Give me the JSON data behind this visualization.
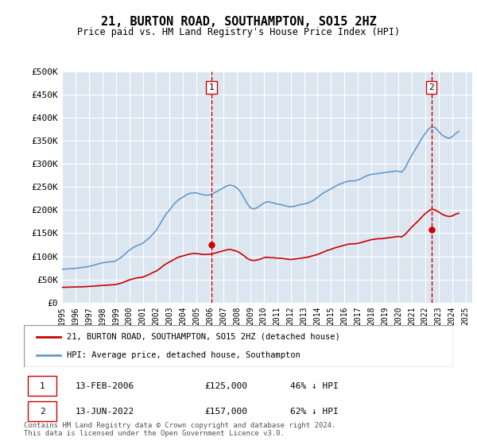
{
  "title": "21, BURTON ROAD, SOUTHAMPTON, SO15 2HZ",
  "subtitle": "Price paid vs. HM Land Registry's House Price Index (HPI)",
  "ylabel_ticks": [
    "£0",
    "£50K",
    "£100K",
    "£150K",
    "£200K",
    "£250K",
    "£300K",
    "£350K",
    "£400K",
    "£450K",
    "£500K"
  ],
  "ytick_values": [
    0,
    50000,
    100000,
    150000,
    200000,
    250000,
    300000,
    350000,
    400000,
    450000,
    500000
  ],
  "ylim": [
    0,
    500000
  ],
  "xlim_start": 1995.0,
  "xlim_end": 2025.5,
  "background_color": "#dce6f1",
  "plot_bg_color": "#dce6f1",
  "red_line_color": "#cc0000",
  "blue_line_color": "#6699cc",
  "vline_color": "#cc0000",
  "transaction1": {
    "date_label": "13-FEB-2006",
    "price": 125000,
    "pct": "46% ↓ HPI",
    "x": 2006.12,
    "marker_num": 1
  },
  "transaction2": {
    "date_label": "13-JUN-2022",
    "price": 157000,
    "pct": "62% ↓ HPI",
    "x": 2022.46,
    "marker_num": 2
  },
  "legend_label_red": "21, BURTON ROAD, SOUTHAMPTON, SO15 2HZ (detached house)",
  "legend_label_blue": "HPI: Average price, detached house, Southampton",
  "footnote": "Contains HM Land Registry data © Crown copyright and database right 2024.\nThis data is licensed under the Open Government Licence v3.0.",
  "hpi_data": {
    "years": [
      1995.0,
      1995.25,
      1995.5,
      1995.75,
      1996.0,
      1996.25,
      1996.5,
      1996.75,
      1997.0,
      1997.25,
      1997.5,
      1997.75,
      1998.0,
      1998.25,
      1998.5,
      1998.75,
      1999.0,
      1999.25,
      1999.5,
      1999.75,
      2000.0,
      2000.25,
      2000.5,
      2000.75,
      2001.0,
      2001.25,
      2001.5,
      2001.75,
      2002.0,
      2002.25,
      2002.5,
      2002.75,
      2003.0,
      2003.25,
      2003.5,
      2003.75,
      2004.0,
      2004.25,
      2004.5,
      2004.75,
      2005.0,
      2005.25,
      2005.5,
      2005.75,
      2006.0,
      2006.25,
      2006.5,
      2006.75,
      2007.0,
      2007.25,
      2007.5,
      2007.75,
      2008.0,
      2008.25,
      2008.5,
      2008.75,
      2009.0,
      2009.25,
      2009.5,
      2009.75,
      2010.0,
      2010.25,
      2010.5,
      2010.75,
      2011.0,
      2011.25,
      2011.5,
      2011.75,
      2012.0,
      2012.25,
      2012.5,
      2012.75,
      2013.0,
      2013.25,
      2013.5,
      2013.75,
      2014.0,
      2014.25,
      2014.5,
      2014.75,
      2015.0,
      2015.25,
      2015.5,
      2015.75,
      2016.0,
      2016.25,
      2016.5,
      2016.75,
      2017.0,
      2017.25,
      2017.5,
      2017.75,
      2018.0,
      2018.25,
      2018.5,
      2018.75,
      2019.0,
      2019.25,
      2019.5,
      2019.75,
      2020.0,
      2020.25,
      2020.5,
      2020.75,
      2021.0,
      2021.25,
      2021.5,
      2021.75,
      2022.0,
      2022.25,
      2022.5,
      2022.75,
      2023.0,
      2023.25,
      2023.5,
      2023.75,
      2024.0,
      2024.25,
      2024.5
    ],
    "values": [
      72000,
      72500,
      73000,
      73500,
      74000,
      75000,
      76000,
      77000,
      78000,
      80000,
      82000,
      84000,
      86000,
      87000,
      88000,
      88500,
      90000,
      95000,
      100000,
      107000,
      113000,
      118000,
      122000,
      125000,
      128000,
      134000,
      140000,
      148000,
      156000,
      168000,
      180000,
      192000,
      200000,
      210000,
      218000,
      224000,
      228000,
      233000,
      236000,
      237000,
      237000,
      235000,
      233000,
      232000,
      233000,
      236000,
      240000,
      244000,
      248000,
      252000,
      254000,
      252000,
      248000,
      240000,
      228000,
      215000,
      205000,
      202000,
      205000,
      210000,
      215000,
      218000,
      217000,
      215000,
      213000,
      212000,
      210000,
      208000,
      207000,
      208000,
      210000,
      212000,
      213000,
      215000,
      218000,
      222000,
      227000,
      233000,
      238000,
      242000,
      246000,
      250000,
      254000,
      257000,
      260000,
      262000,
      263000,
      263000,
      265000,
      268000,
      272000,
      275000,
      277000,
      278000,
      279000,
      280000,
      281000,
      282000,
      283000,
      284000,
      284000,
      282000,
      290000,
      305000,
      318000,
      330000,
      342000,
      355000,
      365000,
      375000,
      380000,
      378000,
      370000,
      362000,
      358000,
      355000,
      358000,
      365000,
      370000
    ]
  },
  "property_data": {
    "years": [
      1995.0,
      1995.25,
      1995.5,
      1995.75,
      1996.0,
      1996.25,
      1996.5,
      1996.75,
      1997.0,
      1997.25,
      1997.5,
      1997.75,
      1998.0,
      1998.25,
      1998.5,
      1998.75,
      1999.0,
      1999.25,
      1999.5,
      1999.75,
      2000.0,
      2000.25,
      2000.5,
      2000.75,
      2001.0,
      2001.25,
      2001.5,
      2001.75,
      2002.0,
      2002.25,
      2002.5,
      2002.75,
      2003.0,
      2003.25,
      2003.5,
      2003.75,
      2004.0,
      2004.25,
      2004.5,
      2004.75,
      2005.0,
      2005.25,
      2005.5,
      2005.75,
      2006.0,
      2006.25,
      2006.5,
      2006.75,
      2007.0,
      2007.25,
      2007.5,
      2007.75,
      2008.0,
      2008.25,
      2008.5,
      2008.75,
      2009.0,
      2009.25,
      2009.5,
      2009.75,
      2010.0,
      2010.25,
      2010.5,
      2010.75,
      2011.0,
      2011.25,
      2011.5,
      2011.75,
      2012.0,
      2012.25,
      2012.5,
      2012.75,
      2013.0,
      2013.25,
      2013.5,
      2013.75,
      2014.0,
      2014.25,
      2014.5,
      2014.75,
      2015.0,
      2015.25,
      2015.5,
      2015.75,
      2016.0,
      2016.25,
      2016.5,
      2016.75,
      2017.0,
      2017.25,
      2017.5,
      2017.75,
      2018.0,
      2018.25,
      2018.5,
      2018.75,
      2019.0,
      2019.25,
      2019.5,
      2019.75,
      2020.0,
      2020.25,
      2020.5,
      2020.75,
      2021.0,
      2021.25,
      2021.5,
      2021.75,
      2022.0,
      2022.25,
      2022.5,
      2022.75,
      2023.0,
      2023.25,
      2023.5,
      2023.75,
      2024.0,
      2024.25,
      2024.5
    ],
    "values": [
      33000,
      33200,
      33400,
      33600,
      33800,
      34000,
      34200,
      34500,
      35000,
      35500,
      36000,
      36500,
      37000,
      37500,
      38000,
      38500,
      39000,
      41000,
      43000,
      46000,
      49000,
      51000,
      53000,
      54000,
      55000,
      58000,
      61000,
      65000,
      68000,
      73000,
      79000,
      84000,
      88000,
      92000,
      96000,
      99000,
      101000,
      103000,
      105000,
      106000,
      106000,
      105000,
      104000,
      104000,
      104500,
      106000,
      108000,
      110000,
      112000,
      114000,
      115000,
      113000,
      111000,
      107000,
      102000,
      96000,
      92000,
      91000,
      92000,
      94000,
      97000,
      98000,
      97000,
      97000,
      96000,
      96000,
      95000,
      94000,
      93000,
      94000,
      95000,
      96000,
      97000,
      98000,
      100000,
      102000,
      104000,
      107000,
      110000,
      113000,
      115000,
      118000,
      120000,
      122000,
      124000,
      126000,
      127000,
      127000,
      128000,
      130000,
      132000,
      134000,
      136000,
      137000,
      138000,
      138000,
      139000,
      140000,
      141000,
      142000,
      143000,
      142000,
      147000,
      155000,
      163000,
      170000,
      177000,
      185000,
      192000,
      198000,
      202000,
      200000,
      196000,
      191000,
      188000,
      186000,
      187000,
      191000,
      193000
    ]
  }
}
